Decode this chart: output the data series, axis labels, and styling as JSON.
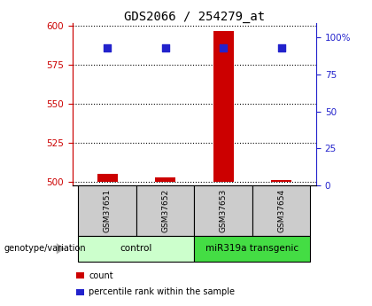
{
  "title": "GDS2066 / 254279_at",
  "samples": [
    "GSM37651",
    "GSM37652",
    "GSM37653",
    "GSM37654"
  ],
  "count_values": [
    505,
    503,
    597,
    501
  ],
  "percentile_values": [
    93,
    93,
    93,
    93
  ],
  "ylim_left": [
    498,
    602
  ],
  "yticks_left": [
    500,
    525,
    550,
    575,
    600
  ],
  "ylim_right": [
    0,
    110
  ],
  "yticks_right": [
    0,
    25,
    50,
    75,
    100
  ],
  "yticklabels_right": [
    "0",
    "25",
    "50",
    "75",
    "100%"
  ],
  "bar_color": "#cc0000",
  "dot_color": "#2222cc",
  "groups": [
    {
      "label": "control",
      "indices": [
        0,
        1
      ],
      "color": "#ccffcc"
    },
    {
      "label": "miR319a transgenic",
      "indices": [
        2,
        3
      ],
      "color": "#44dd44"
    }
  ],
  "genotype_label": "genotype/variation",
  "legend_items": [
    {
      "color": "#cc0000",
      "label": "count"
    },
    {
      "color": "#2222cc",
      "label": "percentile rank within the sample"
    }
  ],
  "sample_box_color": "#cccccc",
  "bar_width": 0.35,
  "dot_size": 28
}
